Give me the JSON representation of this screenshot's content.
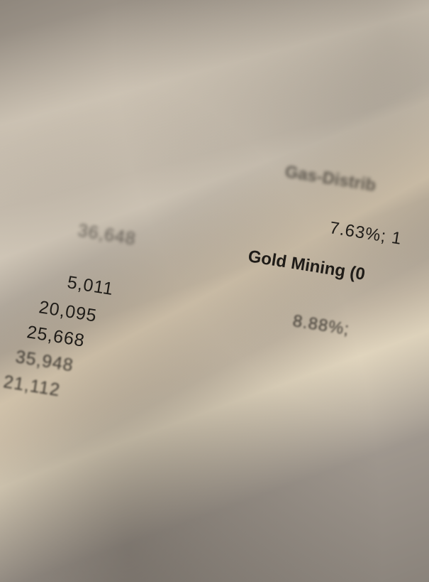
{
  "left_column_far": [
    "36,648"
  ],
  "left_column_near": [
    "5,011",
    "20,095",
    "25,668",
    "35,948",
    "21,112"
  ],
  "right_column": {
    "gas_heading": "Gas-Distrib",
    "gas_value": "7.63%; 1",
    "gold_heading": "Gold Mining (0",
    "gold_value": "8.88%;"
  }
}
